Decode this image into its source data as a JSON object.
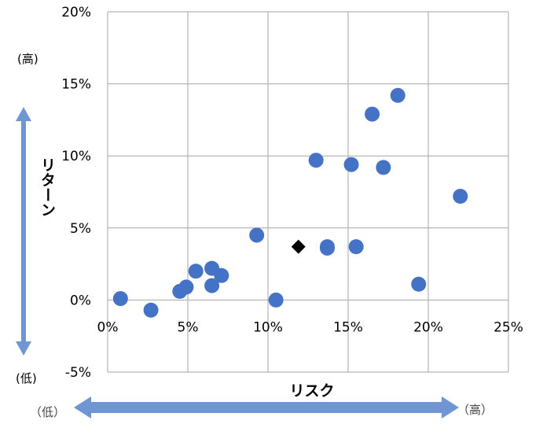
{
  "chart_data": {
    "type": "scatter",
    "title": "",
    "xlabel": "リスク",
    "ylabel": "リターン",
    "xlim": [
      0,
      25
    ],
    "ylim": [
      -5,
      20
    ],
    "x_ticks": [
      0,
      5,
      10,
      15,
      20,
      25
    ],
    "y_ticks": [
      -5,
      0,
      5,
      10,
      15,
      20
    ],
    "x_tick_labels": [
      "0%",
      "5%",
      "10%",
      "15%",
      "20%",
      "25%"
    ],
    "y_tick_labels": [
      "-5%",
      "0%",
      "5%",
      "10%",
      "15%",
      "20%"
    ],
    "grid": true,
    "series": [
      {
        "marker": "circle",
        "color": "#4472C4",
        "points": [
          {
            "x": 0.8,
            "y": 0.1
          },
          {
            "x": 2.7,
            "y": -0.7
          },
          {
            "x": 4.5,
            "y": 0.6
          },
          {
            "x": 4.9,
            "y": 0.9
          },
          {
            "x": 5.5,
            "y": 2.0
          },
          {
            "x": 6.5,
            "y": 2.2
          },
          {
            "x": 6.5,
            "y": 1.0
          },
          {
            "x": 7.1,
            "y": 1.7
          },
          {
            "x": 9.3,
            "y": 4.5
          },
          {
            "x": 10.5,
            "y": 0.0
          },
          {
            "x": 13.0,
            "y": 9.7
          },
          {
            "x": 13.7,
            "y": 3.7
          },
          {
            "x": 13.7,
            "y": 3.6
          },
          {
            "x": 15.2,
            "y": 9.4
          },
          {
            "x": 15.5,
            "y": 3.7
          },
          {
            "x": 16.5,
            "y": 12.9
          },
          {
            "x": 17.2,
            "y": 9.2
          },
          {
            "x": 18.1,
            "y": 14.2
          },
          {
            "x": 19.4,
            "y": 1.1
          },
          {
            "x": 22.0,
            "y": 7.2
          }
        ]
      },
      {
        "marker": "diamond",
        "color": "#000000",
        "points": [
          {
            "x": 11.9,
            "y": 3.7
          }
        ]
      }
    ],
    "y_high_label": "(高)",
    "y_low_label": "(低)",
    "x_high_label": "（高）",
    "x_low_label": "（低）",
    "arrow_color": "#6F95D3"
  }
}
